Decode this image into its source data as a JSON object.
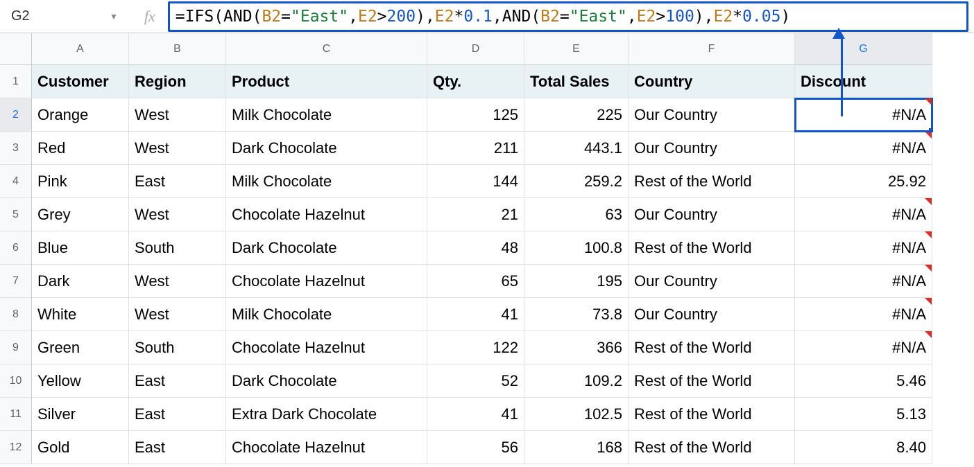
{
  "nameBox": "G2",
  "formula": {
    "tokens": [
      {
        "t": "=",
        "c": "op"
      },
      {
        "t": "IFS",
        "c": "fn"
      },
      {
        "t": "(",
        "c": "op"
      },
      {
        "t": "AND",
        "c": "fn"
      },
      {
        "t": "(",
        "c": "op"
      },
      {
        "t": "B2",
        "c": "ref"
      },
      {
        "t": "=",
        "c": "op"
      },
      {
        "t": "\"East\"",
        "c": "str"
      },
      {
        "t": ",",
        "c": "op"
      },
      {
        "t": "E2",
        "c": "ref"
      },
      {
        "t": ">",
        "c": "op"
      },
      {
        "t": "200",
        "c": "num"
      },
      {
        "t": ")",
        "c": "op"
      },
      {
        "t": ",",
        "c": "op"
      },
      {
        "t": "E2",
        "c": "ref"
      },
      {
        "t": "*",
        "c": "op"
      },
      {
        "t": "0.1",
        "c": "num"
      },
      {
        "t": ",",
        "c": "op"
      },
      {
        "t": "AND",
        "c": "fn"
      },
      {
        "t": "(",
        "c": "op"
      },
      {
        "t": "B2",
        "c": "ref"
      },
      {
        "t": "=",
        "c": "op"
      },
      {
        "t": "\"East\"",
        "c": "str"
      },
      {
        "t": ",",
        "c": "op"
      },
      {
        "t": "E2",
        "c": "ref"
      },
      {
        "t": ">",
        "c": "op"
      },
      {
        "t": "100",
        "c": "num"
      },
      {
        "t": ")",
        "c": "op"
      },
      {
        "t": ",",
        "c": "op"
      },
      {
        "t": "E2",
        "c": "ref"
      },
      {
        "t": "*",
        "c": "op"
      },
      {
        "t": "0.05",
        "c": "num"
      },
      {
        "t": ")",
        "c": "op"
      }
    ]
  },
  "columns": [
    "A",
    "B",
    "C",
    "D",
    "E",
    "F",
    "G"
  ],
  "colWidths": {
    "A": 140,
    "B": 140,
    "C": 290,
    "D": 140,
    "E": 150,
    "F": 240,
    "G": 198
  },
  "selectedCell": "G2",
  "selectedCol": "G",
  "selectedRow": 2,
  "headers": {
    "A": "Customer",
    "B": "Region",
    "C": "Product",
    "D": "Qty.",
    "E": "Total Sales",
    "F": "Country",
    "G": "Discount"
  },
  "rows": [
    {
      "n": 2,
      "A": "Orange",
      "B": "West",
      "C": "Milk Chocolate",
      "D": "125",
      "E": "225",
      "F": "Our Country",
      "G": "#N/A",
      "err": true
    },
    {
      "n": 3,
      "A": "Red",
      "B": "West",
      "C": "Dark Chocolate",
      "D": "211",
      "E": "443.1",
      "F": "Our Country",
      "G": "#N/A",
      "err": true
    },
    {
      "n": 4,
      "A": "Pink",
      "B": "East",
      "C": "Milk Chocolate",
      "D": "144",
      "E": "259.2",
      "F": "Rest of the World",
      "G": "25.92",
      "err": false
    },
    {
      "n": 5,
      "A": "Grey",
      "B": "West",
      "C": "Chocolate Hazelnut",
      "D": "21",
      "E": "63",
      "F": "Our Country",
      "G": "#N/A",
      "err": true
    },
    {
      "n": 6,
      "A": "Blue",
      "B": "South",
      "C": "Dark Chocolate",
      "D": "48",
      "E": "100.8",
      "F": "Rest of the World",
      "G": "#N/A",
      "err": true
    },
    {
      "n": 7,
      "A": "Dark",
      "B": "West",
      "C": "Chocolate Hazelnut",
      "D": "65",
      "E": "195",
      "F": "Our Country",
      "G": "#N/A",
      "err": true
    },
    {
      "n": 8,
      "A": "White",
      "B": "West",
      "C": "Milk Chocolate",
      "D": "41",
      "E": "73.8",
      "F": "Our Country",
      "G": "#N/A",
      "err": true
    },
    {
      "n": 9,
      "A": "Green",
      "B": "South",
      "C": "Chocolate Hazelnut",
      "D": "122",
      "E": "366",
      "F": "Rest of the World",
      "G": "#N/A",
      "err": true
    },
    {
      "n": 10,
      "A": "Yellow",
      "B": "East",
      "C": "Dark Chocolate",
      "D": "52",
      "E": "109.2",
      "F": "Rest of the World",
      "G": "5.46",
      "err": false
    },
    {
      "n": 11,
      "A": "Silver",
      "B": "East",
      "C": "Extra Dark Chocolate",
      "D": "41",
      "E": "102.5",
      "F": "Rest of the World",
      "G": "5.13",
      "err": false
    },
    {
      "n": 12,
      "A": "Gold",
      "B": "East",
      "C": "Chocolate Hazelnut",
      "D": "56",
      "E": "168",
      "F": "Rest of the World",
      "G": "8.40",
      "err": false
    }
  ],
  "numericCols": [
    "D",
    "E",
    "G"
  ],
  "colors": {
    "selection": "#1155cc",
    "headerBg": "#e8f2f5",
    "rowColHeadBg": "#f8f9fa",
    "error": "#d93025"
  }
}
